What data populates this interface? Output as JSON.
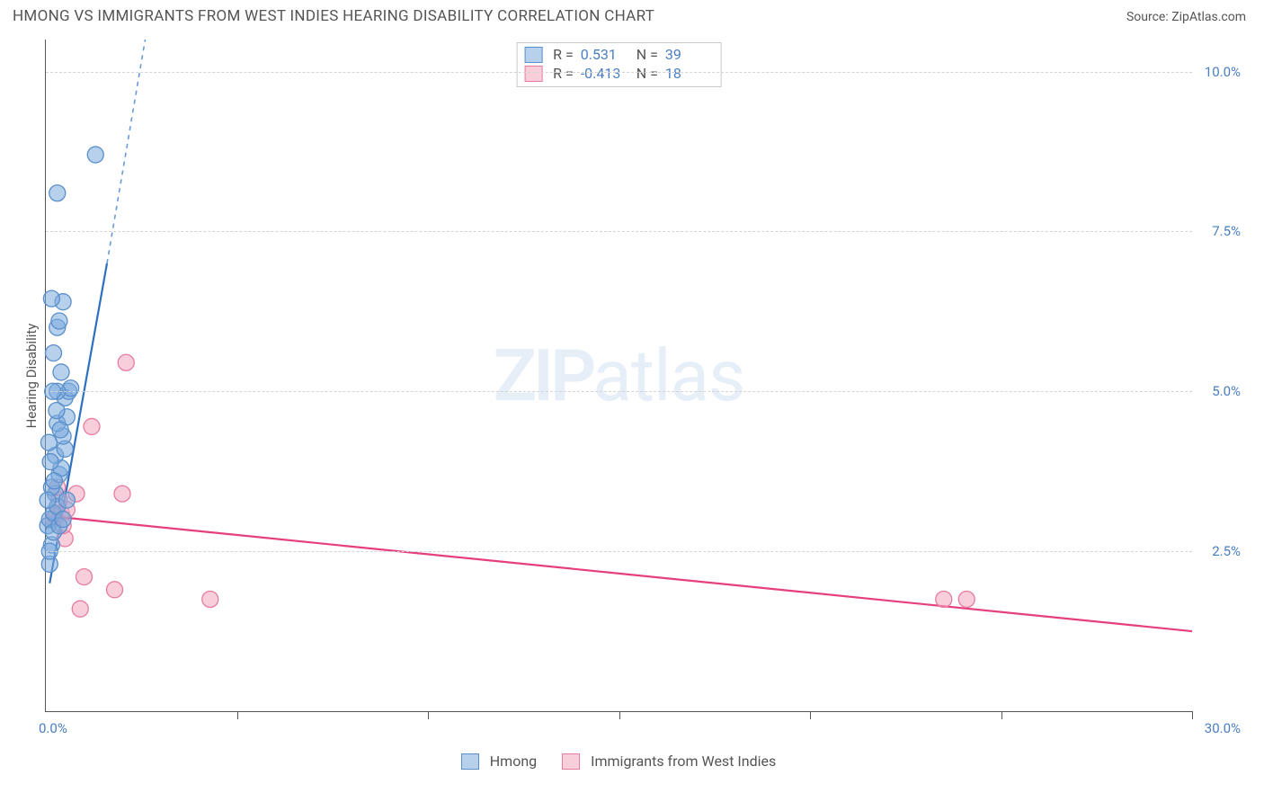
{
  "header": {
    "title": "HMONG VS IMMIGRANTS FROM WEST INDIES HEARING DISABILITY CORRELATION CHART",
    "source": "Source: ZipAtlas.com"
  },
  "watermark": {
    "big": "ZIP",
    "small": "atlas"
  },
  "chart": {
    "type": "scatter",
    "xlim": [
      0,
      30
    ],
    "ylim": [
      0,
      10.5
    ],
    "xticks": [
      5,
      10,
      15,
      20,
      25,
      30
    ],
    "yticks": [
      2.5,
      5.0,
      7.5,
      10.0
    ],
    "ytick_labels": [
      "2.5%",
      "5.0%",
      "7.5%",
      "10.0%"
    ],
    "x_start_label": "0.0%",
    "x_end_label": "30.0%",
    "ylabel": "Hearing Disability",
    "grid_color": "#d4d4d4",
    "background_color": "#ffffff",
    "axis_color": "#555555",
    "point_radius": 9,
    "series": [
      {
        "name": "Hmong",
        "color_fill": "rgba(124,172,223,0.55)",
        "color_stroke": "#5a8fc9",
        "trend_color": "#2e6fc0",
        "R": "0.531",
        "N": "39",
        "trend_solid": {
          "x1": 0.1,
          "y1": 2.0,
          "x2": 1.6,
          "y2": 7.0
        },
        "trend_dash": {
          "x1": 1.6,
          "y1": 7.0,
          "x2": 2.6,
          "y2": 10.5
        },
        "points": [
          {
            "x": 0.05,
            "y": 2.9
          },
          {
            "x": 0.1,
            "y": 2.3
          },
          {
            "x": 0.15,
            "y": 2.6
          },
          {
            "x": 0.1,
            "y": 3.0
          },
          {
            "x": 0.2,
            "y": 3.1
          },
          {
            "x": 0.25,
            "y": 3.4
          },
          {
            "x": 0.3,
            "y": 3.2
          },
          {
            "x": 0.15,
            "y": 3.5
          },
          {
            "x": 0.35,
            "y": 3.7
          },
          {
            "x": 0.4,
            "y": 3.8
          },
          {
            "x": 0.25,
            "y": 4.0
          },
          {
            "x": 0.5,
            "y": 4.1
          },
          {
            "x": 0.45,
            "y": 4.3
          },
          {
            "x": 0.3,
            "y": 4.5
          },
          {
            "x": 0.55,
            "y": 4.6
          },
          {
            "x": 0.5,
            "y": 4.9
          },
          {
            "x": 0.6,
            "y": 5.0
          },
          {
            "x": 0.65,
            "y": 5.05
          },
          {
            "x": 0.4,
            "y": 5.3
          },
          {
            "x": 0.2,
            "y": 5.6
          },
          {
            "x": 0.3,
            "y": 6.0
          },
          {
            "x": 0.35,
            "y": 6.1
          },
          {
            "x": 0.45,
            "y": 6.4
          },
          {
            "x": 0.15,
            "y": 6.45
          },
          {
            "x": 0.3,
            "y": 5.0
          },
          {
            "x": 0.55,
            "y": 3.3
          },
          {
            "x": 0.3,
            "y": 8.1
          },
          {
            "x": 1.3,
            "y": 8.7
          },
          {
            "x": 0.1,
            "y": 2.5
          },
          {
            "x": 0.2,
            "y": 2.8
          },
          {
            "x": 0.35,
            "y": 2.9
          },
          {
            "x": 0.05,
            "y": 3.3
          },
          {
            "x": 0.12,
            "y": 3.9
          },
          {
            "x": 0.28,
            "y": 4.7
          },
          {
            "x": 0.45,
            "y": 3.0
          },
          {
            "x": 0.08,
            "y": 4.2
          },
          {
            "x": 0.18,
            "y": 5.0
          },
          {
            "x": 0.22,
            "y": 3.6
          },
          {
            "x": 0.38,
            "y": 4.4
          }
        ]
      },
      {
        "name": "Immigrants from West Indies",
        "color_fill": "rgba(243,166,189,0.55)",
        "color_stroke": "#e77ba0",
        "trend_color": "#e63f7e",
        "R": "-0.413",
        "N": "18",
        "trend_solid": {
          "x1": 0.1,
          "y1": 3.05,
          "x2": 30.0,
          "y2": 1.25
        },
        "points": [
          {
            "x": 0.2,
            "y": 3.0
          },
          {
            "x": 0.25,
            "y": 3.05
          },
          {
            "x": 0.4,
            "y": 3.1
          },
          {
            "x": 0.35,
            "y": 3.3
          },
          {
            "x": 0.8,
            "y": 3.4
          },
          {
            "x": 0.3,
            "y": 3.5
          },
          {
            "x": 0.5,
            "y": 2.7
          },
          {
            "x": 0.45,
            "y": 2.9
          },
          {
            "x": 1.0,
            "y": 2.1
          },
          {
            "x": 0.9,
            "y": 1.6
          },
          {
            "x": 1.8,
            "y": 1.9
          },
          {
            "x": 2.0,
            "y": 3.4
          },
          {
            "x": 1.2,
            "y": 4.45
          },
          {
            "x": 4.3,
            "y": 1.75
          },
          {
            "x": 2.1,
            "y": 5.45
          },
          {
            "x": 23.5,
            "y": 1.75
          },
          {
            "x": 24.1,
            "y": 1.75
          },
          {
            "x": 0.55,
            "y": 3.15
          }
        ]
      }
    ]
  },
  "legend_stats": {
    "r_label": "R =",
    "n_label": "N ="
  },
  "bottom_legend": {
    "hmong": "Hmong",
    "wi": "Immigrants from West Indies"
  }
}
